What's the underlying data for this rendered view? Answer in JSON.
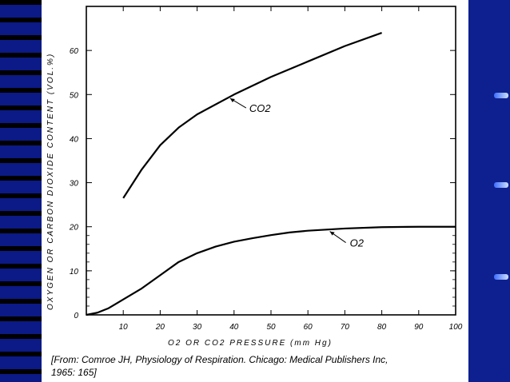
{
  "chart_data": {
    "type": "line",
    "ylabel": "OXYGEN OR CARBON DIOXIDE CONTENT (VOL.%)",
    "xlabel": "O2 OR CO2 PRESSURE (mm Hg)",
    "xlim": [
      0,
      100
    ],
    "ylim": [
      0,
      70
    ],
    "x_ticks": [
      "10",
      "20",
      "30",
      "40",
      "50",
      "60",
      "70",
      "80",
      "90",
      "100"
    ],
    "y_ticks": [
      "0",
      "10",
      "20",
      "30",
      "40",
      "50",
      "60"
    ],
    "series": [
      {
        "name": "CO2",
        "x": [
          10,
          15,
          20,
          25,
          30,
          40,
          50,
          60,
          70,
          80
        ],
        "y": [
          26.5,
          33,
          38.5,
          42.5,
          45.5,
          50,
          54,
          57.5,
          61,
          64
        ],
        "label": "CO2"
      },
      {
        "name": "O2",
        "x": [
          0,
          3,
          6,
          10,
          15,
          20,
          25,
          30,
          35,
          40,
          45,
          50,
          55,
          60,
          70,
          80,
          90,
          100
        ],
        "y": [
          0,
          0.5,
          1.5,
          3.5,
          6,
          9,
          12,
          14,
          15.5,
          16.6,
          17.4,
          18.1,
          18.7,
          19.1,
          19.6,
          19.9,
          20,
          20
        ],
        "label": "O2"
      }
    ],
    "grid": false
  },
  "caption": {
    "line1": "[From: Comroe JH, Physiology of Respiration. Chicago: Medical Publishers Inc,",
    "line2": "1965: 165]"
  }
}
